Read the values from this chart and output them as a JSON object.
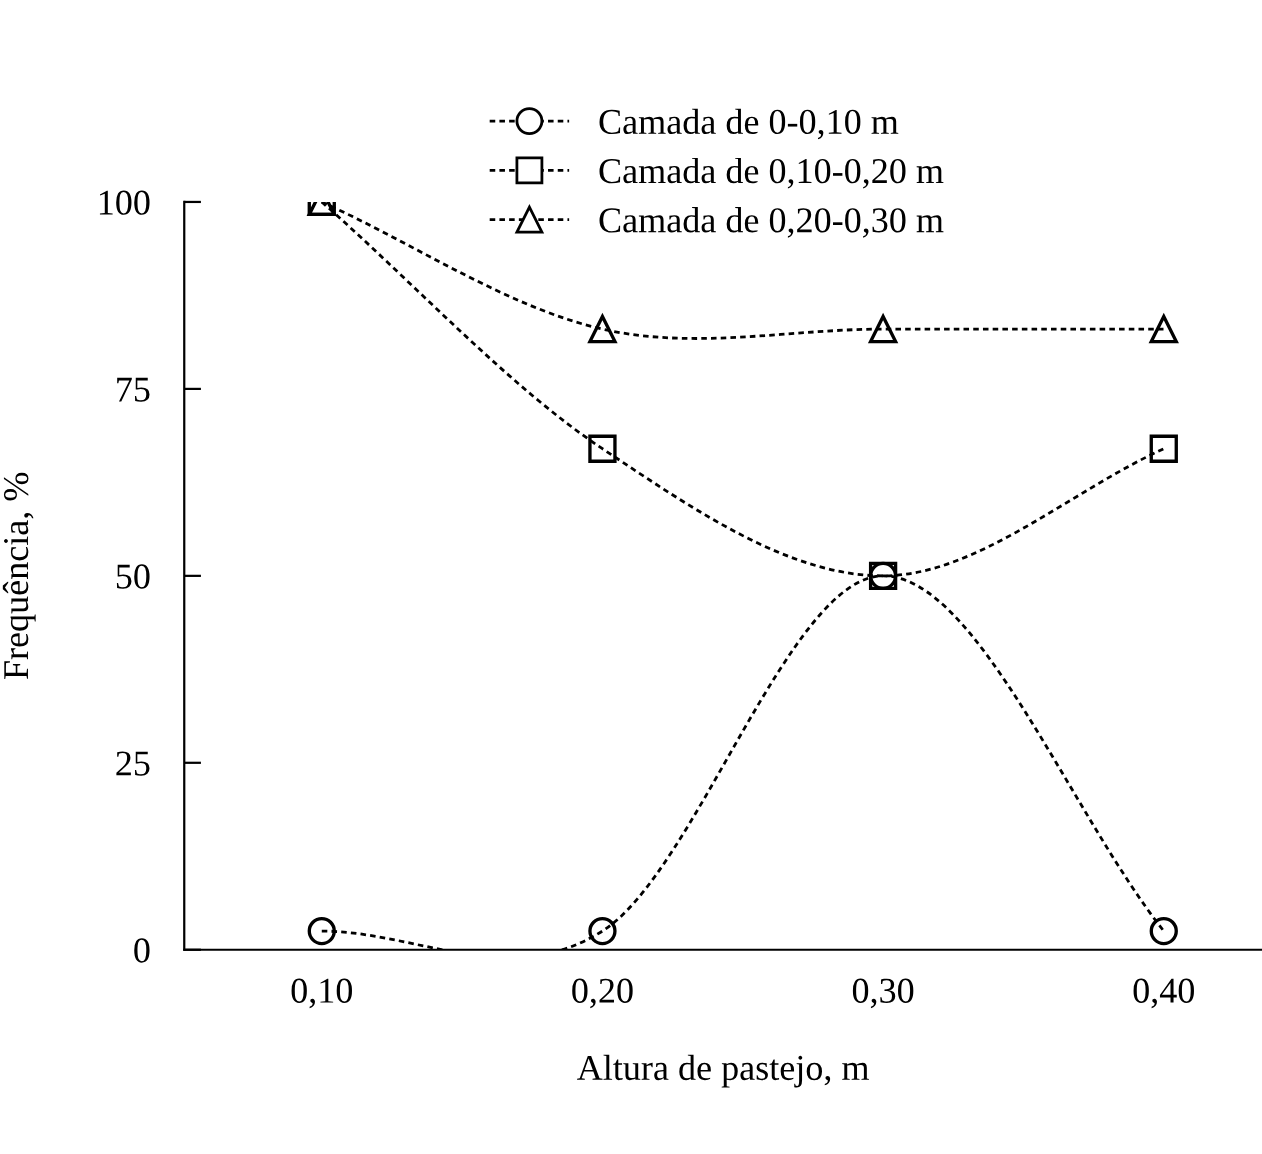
{
  "chart_data": {
    "type": "line",
    "xlabel": "Altura de pastejo, m",
    "ylabel": "Frequência, %",
    "categories": [
      "0,10",
      "0,20",
      "0,30",
      "0,40"
    ],
    "series": [
      {
        "name": "Camada de 0-0,10 m",
        "color": "#000000",
        "marker": "circle",
        "values": [
          2.5,
          2.5,
          50,
          2.5
        ]
      },
      {
        "name": "Camada de 0,10-0,20 m",
        "color": "#000000",
        "marker": "square",
        "values": [
          100,
          67,
          50,
          67
        ]
      },
      {
        "name": "Camada de 0,20-0,30 m",
        "color": "#000000",
        "marker": "triangle",
        "values": [
          100,
          83,
          83,
          83
        ]
      }
    ],
    "ylim": [
      0,
      100
    ],
    "yticks": [
      0,
      25,
      50,
      75,
      100
    ],
    "grid": false,
    "legend": "top",
    "line_style": "dotted"
  }
}
